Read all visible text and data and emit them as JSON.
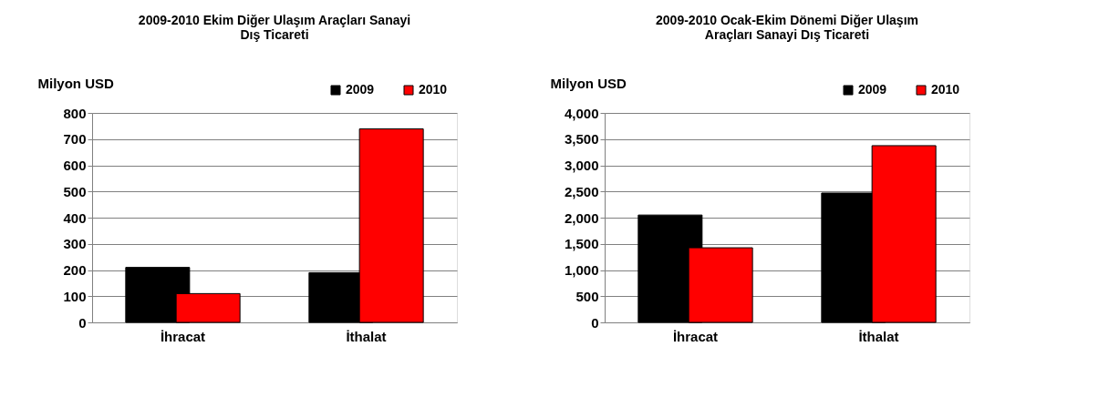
{
  "chart_data": [
    {
      "type": "bar",
      "title": "2009-2010 Ekim Diğer Ulaşım Araçları Sanayi Dış Ticareti",
      "ylabel": "Milyon USD",
      "categories": [
        "İhracat",
        "İthalat"
      ],
      "series": [
        {
          "name": "2009",
          "color": "#000000",
          "values": [
            210,
            190
          ]
        },
        {
          "name": "2010",
          "color": "#ff0000",
          "values": [
            110,
            739
          ]
        }
      ],
      "ylim": [
        0,
        800
      ],
      "yticks": [
        0,
        100,
        200,
        300,
        400,
        500,
        600,
        700,
        800
      ],
      "grid": "y",
      "legend": "top right"
    },
    {
      "type": "bar",
      "title": "2009-2010 Ocak-Ekim Dönemi Diğer Ulaşım Araçları Sanayi Dış Ticareti",
      "ylabel": "Milyon USD",
      "categories": [
        "İhracat",
        "İthalat"
      ],
      "series": [
        {
          "name": "2009",
          "color": "#000000",
          "values": [
            2050,
            2470
          ]
        },
        {
          "name": "2010",
          "color": "#ff0000",
          "values": [
            1425,
            3375
          ]
        }
      ],
      "ylim": [
        0,
        4000
      ],
      "yticks": [
        0,
        {
          "value": 500,
          "label": "500"
        },
        {
          "value": 1000,
          "label": "1,000"
        },
        {
          "value": 1500,
          "label": "1,500"
        },
        {
          "value": 2000,
          "label": "2,000"
        },
        {
          "value": 2500,
          "label": "2,500"
        },
        {
          "value": 3000,
          "label": "3,000"
        },
        {
          "value": 3500,
          "label": "3,500"
        },
        {
          "value": 4000,
          "label": "4,000"
        }
      ],
      "grid": "y",
      "legend": "top right"
    }
  ]
}
